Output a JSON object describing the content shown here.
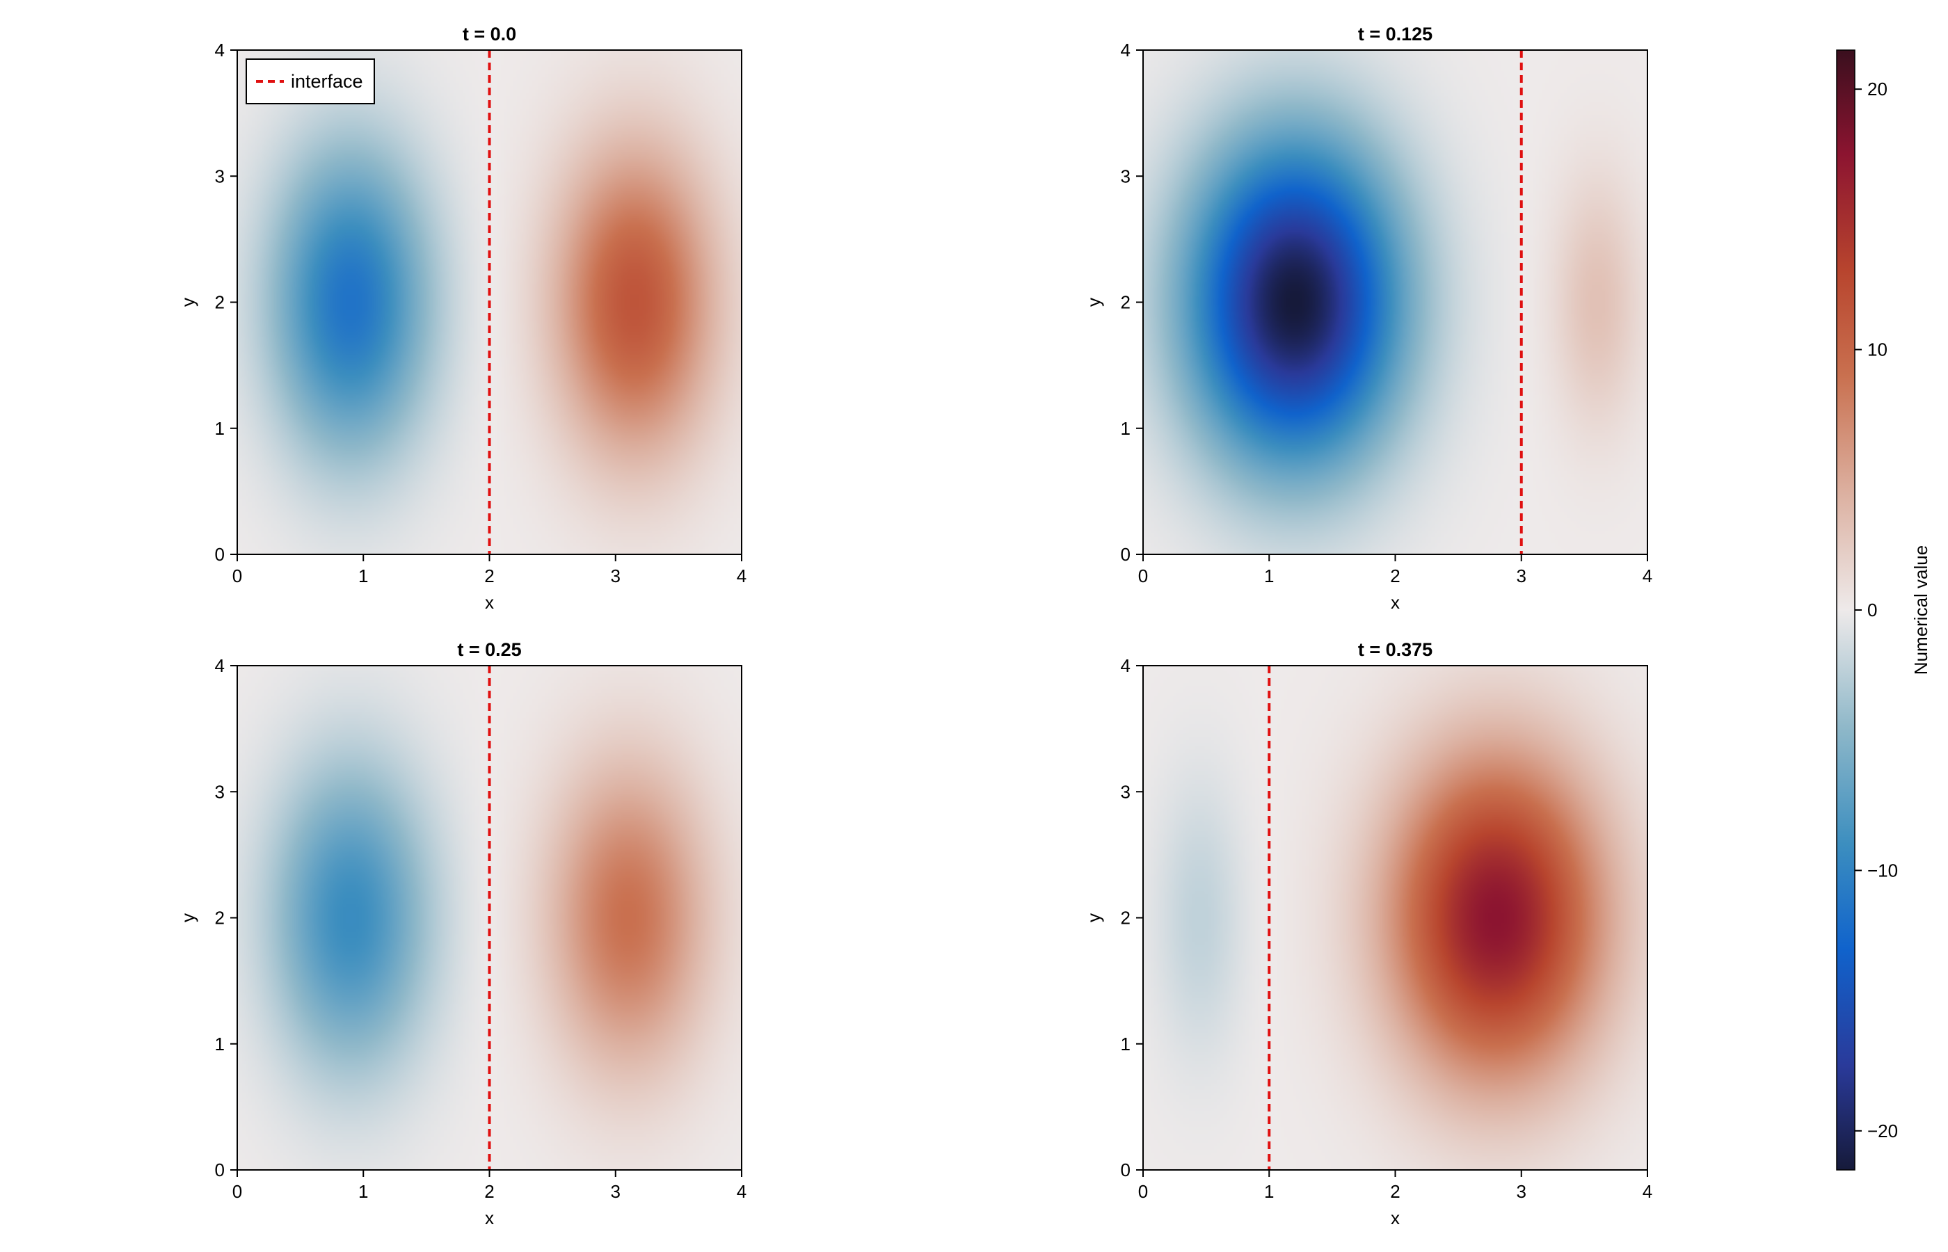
{
  "chart_data": {
    "type": "heatmap",
    "colormap": {
      "name": "diverging blue-white-red",
      "range": [
        -21.5,
        21.5
      ],
      "ticks": [
        -20,
        -10,
        0,
        10,
        20
      ],
      "tick_labels": [
        "−20",
        "−10",
        "0",
        "10",
        "20"
      ],
      "label": "Numerical value",
      "stops": [
        {
          "value": -21.5,
          "color": "#161a3a"
        },
        {
          "value": -17.5,
          "color": "#2a3a9a"
        },
        {
          "value": -13.0,
          "color": "#1063cc"
        },
        {
          "value": -9.0,
          "color": "#3c8ebf"
        },
        {
          "value": -4.5,
          "color": "#8fb8c9"
        },
        {
          "value": 0.0,
          "color": "#eeeaea"
        },
        {
          "value": 4.5,
          "color": "#dcb0a0"
        },
        {
          "value": 9.0,
          "color": "#c9704f"
        },
        {
          "value": 13.0,
          "color": "#b8452e"
        },
        {
          "value": 17.5,
          "color": "#8c1430"
        },
        {
          "value": 21.5,
          "color": "#3a0f1e"
        }
      ]
    },
    "interface_style": {
      "color": "#e01010",
      "dash": "dashed"
    },
    "legend": {
      "label": "interface",
      "placement": "top-left",
      "panel": 0
    },
    "panels": [
      {
        "title": "t = 0.0",
        "xlabel": "x",
        "ylabel": "y",
        "xlim": [
          0,
          4
        ],
        "ylim": [
          0,
          4
        ],
        "xticks": [
          0,
          1,
          2,
          3,
          4
        ],
        "yticks": [
          0,
          1,
          2,
          3,
          4
        ],
        "interface_x": 2,
        "field": [
          {
            "amplitude": -11.5,
            "cx": 0.9,
            "cy": 2.0,
            "sx": 0.62,
            "sy": 1.2
          },
          {
            "amplitude": 11.5,
            "cx": 3.15,
            "cy": 2.0,
            "sx": 0.62,
            "sy": 1.2
          }
        ]
      },
      {
        "title": "t = 0.125",
        "xlabel": "x",
        "ylabel": "y",
        "xlim": [
          0,
          4
        ],
        "ylim": [
          0,
          4
        ],
        "xticks": [
          0,
          1,
          2,
          3,
          4
        ],
        "yticks": [
          0,
          1,
          2,
          3,
          4
        ],
        "interface_x": 3,
        "field": [
          {
            "amplitude": -21.5,
            "cx": 1.2,
            "cy": 2.0,
            "sx": 0.82,
            "sy": 1.25
          },
          {
            "amplitude": 3.2,
            "cx": 3.6,
            "cy": 2.0,
            "sx": 0.35,
            "sy": 1.0
          }
        ]
      },
      {
        "title": "t = 0.25",
        "xlabel": "x",
        "ylabel": "y",
        "xlim": [
          0,
          4
        ],
        "ylim": [
          0,
          4
        ],
        "xticks": [
          0,
          1,
          2,
          3,
          4
        ],
        "yticks": [
          0,
          1,
          2,
          3,
          4
        ],
        "interface_x": 2,
        "field": [
          {
            "amplitude": -9.2,
            "cx": 0.9,
            "cy": 2.0,
            "sx": 0.62,
            "sy": 1.2
          },
          {
            "amplitude": 9.0,
            "cx": 3.1,
            "cy": 2.0,
            "sx": 0.62,
            "sy": 1.2
          }
        ]
      },
      {
        "title": "t = 0.375",
        "xlabel": "x",
        "ylabel": "y",
        "xlim": [
          0,
          4
        ],
        "ylim": [
          0,
          4
        ],
        "xticks": [
          0,
          1,
          2,
          3,
          4
        ],
        "yticks": [
          0,
          1,
          2,
          3,
          4
        ],
        "interface_x": 1,
        "field": [
          {
            "amplitude": -2.2,
            "cx": 0.45,
            "cy": 2.0,
            "sx": 0.35,
            "sy": 1.1
          },
          {
            "amplitude": 17.5,
            "cx": 2.8,
            "cy": 2.0,
            "sx": 0.82,
            "sy": 1.25
          }
        ]
      }
    ]
  }
}
